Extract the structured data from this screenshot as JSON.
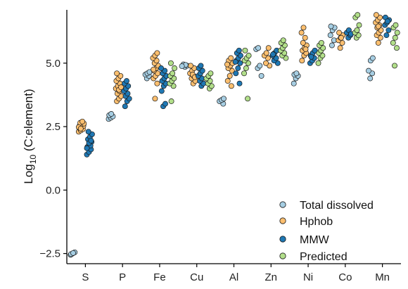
{
  "chart_data": {
    "type": "scatter",
    "ylabel": "Log10 (C:element)",
    "ylabel_parts": {
      "prefix": "Log",
      "subscript": "10",
      "suffix": " (C:element)"
    },
    "xlabel": "",
    "ylim": [
      -2.9,
      7.1
    ],
    "yticks": [
      -2.5,
      0.0,
      2.5,
      5.0
    ],
    "ytick_labels": [
      "−2.5",
      "0.0",
      "2.5",
      "5.0"
    ],
    "categories": [
      "S",
      "P",
      "Fe",
      "Cu",
      "Al",
      "Zn",
      "Ni",
      "Co",
      "Mn"
    ],
    "legend_position": "bottom-right",
    "grid": false,
    "series": [
      {
        "name": "Total dissolved",
        "color": "#a6cee3",
        "offset": -0.33,
        "points": {
          "S": [
            -2.55,
            -2.5,
            -2.45,
            -2.52,
            -2.48
          ],
          "P": [
            2.8,
            2.85,
            2.9,
            2.95,
            3.0
          ],
          "Fe": [
            4.4,
            4.5,
            4.55,
            4.6,
            4.65
          ],
          "Cu": [
            4.85,
            4.9,
            4.95,
            4.93,
            4.88
          ],
          "Al": [
            3.4,
            3.5,
            3.55,
            3.6
          ],
          "Zn": [
            4.5,
            4.8,
            4.9,
            5.55,
            5.6
          ],
          "Ni": [
            4.2,
            4.4,
            4.5,
            4.55,
            4.6
          ],
          "Co": [
            5.7,
            5.9,
            6.1,
            6.3,
            6.4,
            6.45
          ],
          "Mn": [
            4.4,
            4.6,
            4.7,
            5.1,
            5.2
          ]
        }
      },
      {
        "name": "Hphob",
        "color": "#fdbf6f",
        "offset": -0.11,
        "points": {
          "S": [
            2.3,
            2.35,
            2.4,
            2.45,
            2.5,
            2.52,
            2.55,
            2.6,
            2.62,
            2.65,
            2.7,
            2.48,
            2.42
          ],
          "P": [
            3.5,
            3.6,
            3.7,
            3.8,
            3.9,
            4.0,
            4.1,
            4.2,
            4.3,
            4.4,
            4.5,
            4.6,
            3.95,
            4.05
          ],
          "Fe": [
            3.6,
            4.2,
            4.4,
            4.5,
            4.6,
            4.7,
            4.8,
            4.9,
            5.0,
            5.1,
            5.2,
            5.3,
            5.4,
            4.75
          ],
          "Cu": [
            4.2,
            4.3,
            4.4,
            4.5,
            4.6,
            4.7,
            4.8,
            4.9,
            4.55,
            4.45
          ],
          "Al": [
            4.1,
            4.3,
            4.5,
            4.7,
            4.8,
            4.9,
            5.0,
            5.1,
            5.2,
            4.95
          ],
          "Zn": [
            4.9,
            5.0,
            5.2,
            5.3,
            5.4,
            5.6
          ],
          "Ni": [
            5.1,
            5.3,
            5.4,
            5.5,
            5.6,
            5.7,
            5.8,
            6.0,
            6.2,
            6.4,
            5.55
          ],
          "Co": [
            5.6,
            5.8,
            5.9,
            6.0,
            6.1,
            6.2,
            6.0
          ],
          "Mn": [
            5.8,
            6.0,
            6.1,
            6.2,
            6.3,
            6.4,
            6.5,
            6.6,
            6.7,
            6.8,
            6.9,
            6.45
          ]
        }
      },
      {
        "name": "MMW",
        "color": "#1f78b4",
        "offset": 0.11,
        "points": {
          "S": [
            1.4,
            1.5,
            1.6,
            1.7,
            1.8,
            1.9,
            2.0,
            2.1,
            2.2,
            2.3,
            1.75,
            1.65,
            1.85,
            1.95
          ],
          "P": [
            3.3,
            3.5,
            3.6,
            3.7,
            3.8,
            3.9,
            4.0,
            4.1,
            4.2,
            4.3
          ],
          "Fe": [
            3.3,
            3.4,
            3.9,
            4.1,
            4.2,
            4.3,
            4.4,
            4.5,
            4.6,
            4.7,
            4.8
          ],
          "Cu": [
            4.1,
            4.2,
            4.3,
            4.4,
            4.5,
            4.6,
            4.7,
            4.8,
            4.9
          ],
          "Al": [
            4.2,
            4.6,
            4.8,
            5.0,
            5.1,
            5.2,
            5.3,
            5.4,
            5.5,
            5.05
          ],
          "Zn": [
            5.0,
            5.1,
            5.2,
            5.3,
            5.4,
            5.5,
            5.35
          ],
          "Ni": [
            5.0,
            5.1,
            5.2,
            5.3,
            5.4,
            5.5,
            5.25
          ],
          "Co": [
            6.0,
            6.1,
            6.2,
            6.3,
            6.15
          ],
          "Mn": [
            6.1,
            6.3,
            6.5,
            6.6,
            6.7,
            6.8,
            6.65
          ]
        }
      },
      {
        "name": "Predicted",
        "color": "#b2df8a",
        "offset": 0.33,
        "points": {
          "S": [],
          "P": [],
          "Fe": [
            3.5,
            4.1,
            4.2,
            4.3,
            4.4,
            4.5,
            4.6,
            4.8,
            5.0
          ],
          "Cu": [
            4.0,
            4.1,
            4.2,
            4.3,
            4.4,
            4.5,
            4.6
          ],
          "Al": [
            3.6,
            4.6,
            4.8,
            5.0,
            5.1,
            5.2,
            5.3,
            5.5
          ],
          "Zn": [
            5.2,
            5.3,
            5.4,
            5.5,
            5.6,
            5.7,
            5.8,
            5.9
          ],
          "Ni": [
            5.0,
            5.2,
            5.3,
            5.4,
            5.5,
            5.6,
            5.7,
            5.8
          ],
          "Co": [
            6.0,
            6.1,
            6.2,
            6.3,
            6.5,
            6.8,
            6.9
          ],
          "Mn": [
            4.9,
            5.6,
            5.8,
            6.0,
            6.2,
            6.4,
            6.5
          ]
        }
      }
    ]
  }
}
